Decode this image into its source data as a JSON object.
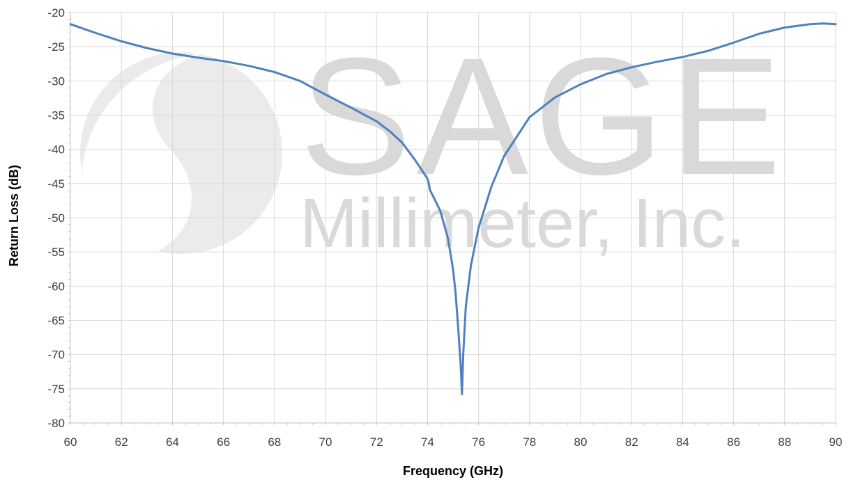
{
  "chart_data": {
    "type": "line",
    "title": "",
    "xlabel": "Frequency (GHz)",
    "ylabel": "Return Loss (dB)",
    "xlim": [
      60,
      90
    ],
    "ylim": [
      -80,
      -20
    ],
    "x_ticks": [
      60,
      62,
      64,
      66,
      68,
      70,
      72,
      74,
      76,
      78,
      80,
      82,
      84,
      86,
      88,
      90
    ],
    "y_ticks": [
      -20,
      -25,
      -30,
      -35,
      -40,
      -45,
      -50,
      -55,
      -60,
      -65,
      -70,
      -75,
      -80
    ],
    "grid": true,
    "legend": "none",
    "series": [
      {
        "color": "#4f81bd",
        "x": [
          60,
          61,
          62,
          63,
          64,
          65,
          66,
          67,
          68,
          69,
          70,
          71,
          72,
          72.5,
          73,
          73.5,
          74,
          74.05,
          74.1,
          74.2,
          74.5,
          74.8,
          75.0,
          75.1,
          75.2,
          75.3,
          75.35,
          75.4,
          75.5,
          75.7,
          76,
          76.5,
          77,
          78,
          79,
          80,
          81,
          82,
          83,
          84,
          85,
          86,
          87,
          88,
          89,
          89.5,
          90
        ],
        "y": [
          -21.7,
          -23.0,
          -24.2,
          -25.2,
          -26.0,
          -26.6,
          -27.1,
          -27.8,
          -28.7,
          -30.0,
          -32.0,
          -33.9,
          -35.9,
          -37.3,
          -39.0,
          -41.5,
          -44.3,
          -45.0,
          -46.0,
          -46.7,
          -49.0,
          -53.0,
          -57.5,
          -61.0,
          -66.0,
          -71.5,
          -75.8,
          -70.0,
          -63.0,
          -57.0,
          -51.5,
          -45.5,
          -41.0,
          -35.3,
          -32.4,
          -30.5,
          -29.0,
          -28.0,
          -27.2,
          -26.5,
          -25.6,
          -24.4,
          -23.1,
          -22.2,
          -21.7,
          -21.6,
          -21.7
        ]
      }
    ]
  },
  "watermark": {
    "line1": "SAGE",
    "line2": "Millimeter, Inc."
  }
}
